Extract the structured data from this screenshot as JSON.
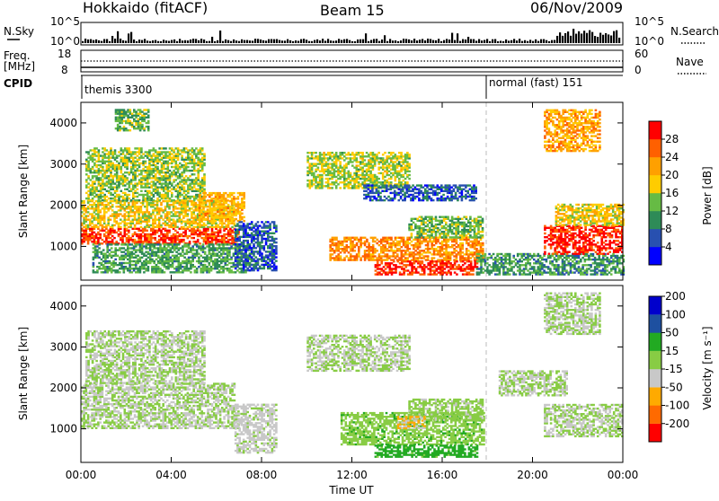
{
  "header": {
    "station": "Hokkaido (fitACF)",
    "beam": "Beam 15",
    "date": "06/Nov/2009"
  },
  "side_labels": {
    "nsky": "N.Sky",
    "freq": "Freq.",
    "mhz": "[MHz]",
    "cpid": "CPID",
    "nsearch": "N.Search",
    "nave": "Nave"
  },
  "strip_ticks": {
    "nsky_top": "10^5",
    "nsky_bottom": "10^0",
    "freq_top": "18",
    "freq_bottom": "8",
    "nave_top": "60",
    "nave_bottom": "0"
  },
  "cpid": {
    "segments": [
      {
        "label": "themis 3300",
        "start_hour": 0
      },
      {
        "label": "normal (fast) 151",
        "start_hour": 18
      }
    ]
  },
  "colors": {
    "power": [
      "#0000ff",
      "#2850b0",
      "#2e8b57",
      "#66bb44",
      "#ffcc00",
      "#ffa000",
      "#ff6000",
      "#ff0000"
    ],
    "velocity": [
      "#ff0000",
      "#ff6a00",
      "#ffaa00",
      "#c8c8c8",
      "#88cc44",
      "#22aa22",
      "#1e50a0",
      "#0000cc"
    ]
  },
  "chart_data": [
    {
      "type": "heatmap",
      "panel": "power",
      "xlabel": "",
      "ylabel": "Slant Range [km]",
      "xlim_hours": [
        0,
        24
      ],
      "ylim_km": [
        180,
        4500
      ],
      "x_ticks": [
        "00:00",
        "04:00",
        "08:00",
        "12:00",
        "16:00",
        "20:00",
        "00:00"
      ],
      "y_ticks": [
        1000,
        2000,
        3000,
        4000
      ],
      "colorbar": {
        "label": "Power [dB]",
        "ticks": [
          "4",
          "8",
          "12",
          "16",
          "20",
          "24",
          "28"
        ],
        "range": [
          0,
          30
        ]
      },
      "regions": [
        {
          "t": [
            0,
            7.0
          ],
          "r": [
            1050,
            1450
          ],
          "v": 26
        },
        {
          "t": [
            0,
            6.8
          ],
          "r": [
            1450,
            2100
          ],
          "v": 17
        },
        {
          "t": [
            0.2,
            5.5
          ],
          "r": [
            2100,
            3400
          ],
          "v": 14
        },
        {
          "t": [
            5.2,
            7.2
          ],
          "r": [
            1600,
            2300
          ],
          "v": 19
        },
        {
          "t": [
            0.5,
            7.5
          ],
          "r": [
            350,
            1050
          ],
          "v": 11
        },
        {
          "t": [
            6.8,
            8.6
          ],
          "r": [
            400,
            1600
          ],
          "v": 6
        },
        {
          "t": [
            10.0,
            14.5
          ],
          "r": [
            2400,
            3300
          ],
          "v": 15
        },
        {
          "t": [
            12.5,
            17.5
          ],
          "r": [
            2100,
            2500
          ],
          "v": 6
        },
        {
          "t": [
            11.0,
            17.8
          ],
          "r": [
            650,
            1200
          ],
          "v": 22
        },
        {
          "t": [
            13.0,
            17.5
          ],
          "r": [
            300,
            650
          ],
          "v": 27
        },
        {
          "t": [
            14.5,
            17.8
          ],
          "r": [
            1200,
            1700
          ],
          "v": 13
        },
        {
          "t": [
            17.5,
            24
          ],
          "r": [
            300,
            800
          ],
          "v": 10
        },
        {
          "t": [
            20.5,
            24
          ],
          "r": [
            800,
            1500
          ],
          "v": 28
        },
        {
          "t": [
            21.0,
            24
          ],
          "r": [
            1500,
            2000
          ],
          "v": 17
        },
        {
          "t": [
            20.5,
            23.0
          ],
          "r": [
            3300,
            4300
          ],
          "v": 20
        },
        {
          "t": [
            1.5,
            3.0
          ],
          "r": [
            3800,
            4300
          ],
          "v": 12
        }
      ]
    },
    {
      "type": "heatmap",
      "panel": "velocity",
      "xlabel": "Time UT",
      "ylabel": "Slant Range [km]",
      "xlim_hours": [
        0,
        24
      ],
      "ylim_km": [
        180,
        4500
      ],
      "x_ticks": [
        "00:00",
        "04:00",
        "08:00",
        "12:00",
        "16:00",
        "20:00",
        "00:00"
      ],
      "y_ticks": [
        1000,
        2000,
        3000,
        4000
      ],
      "colorbar": {
        "label": "Velocity [m s⁻¹]",
        "ticks": [
          "-200",
          "-100",
          "-50",
          "-15",
          "15",
          "50",
          "100",
          "200"
        ],
        "range": [
          -250,
          250
        ]
      },
      "regions": [
        {
          "t": [
            0,
            7.0
          ],
          "r": [
            1000,
            1450
          ],
          "v": 0
        },
        {
          "t": [
            0,
            6.8
          ],
          "r": [
            1450,
            2100
          ],
          "v": 0
        },
        {
          "t": [
            0.2,
            5.5
          ],
          "r": [
            2100,
            3400
          ],
          "v": 0
        },
        {
          "t": [
            6.8,
            8.6
          ],
          "r": [
            400,
            1600
          ],
          "v": -20
        },
        {
          "t": [
            10.0,
            14.5
          ],
          "r": [
            2400,
            3300
          ],
          "v": 0
        },
        {
          "t": [
            11.5,
            17.8
          ],
          "r": [
            600,
            1400
          ],
          "v": 40
        },
        {
          "t": [
            13.0,
            17.5
          ],
          "r": [
            300,
            600
          ],
          "v": 90
        },
        {
          "t": [
            14.5,
            17.8
          ],
          "r": [
            1200,
            1700
          ],
          "v": 20
        },
        {
          "t": [
            20.5,
            24
          ],
          "r": [
            800,
            1600
          ],
          "v": 0
        },
        {
          "t": [
            18.5,
            21.5
          ],
          "r": [
            1800,
            2400
          ],
          "v": 0
        },
        {
          "t": [
            20.5,
            23.0
          ],
          "r": [
            3300,
            4300
          ],
          "v": 0
        },
        {
          "t": [
            14.0,
            15.2
          ],
          "r": [
            1000,
            1300
          ],
          "v": -60
        }
      ]
    }
  ]
}
